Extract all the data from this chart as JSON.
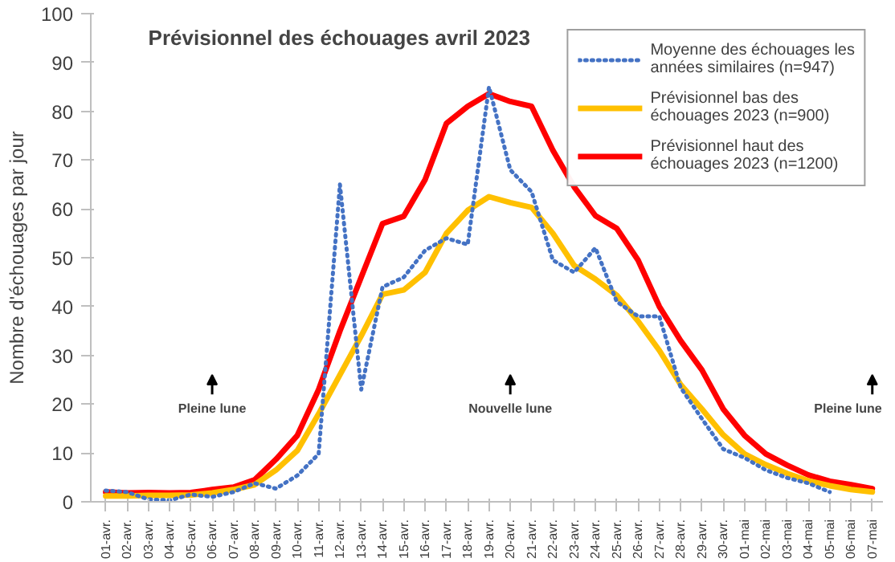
{
  "chart_data": {
    "type": "line",
    "title": "Prévisionnel des échouages avril 2023",
    "ylabel": "Nombre d'échouages par jour",
    "categories": [
      "01-avr.",
      "02-avr.",
      "03-avr.",
      "04-avr.",
      "05-avr.",
      "06-avr.",
      "07-avr.",
      "08-avr.",
      "09-avr.",
      "10-avr.",
      "11-avr.",
      "12-avr.",
      "13-avr.",
      "14-avr.",
      "15-avr.",
      "16-avr.",
      "17-avr.",
      "18-avr.",
      "19-avr.",
      "20-avr.",
      "21-avr.",
      "22-avr.",
      "23-avr.",
      "24-avr.",
      "25-avr.",
      "26-avr.",
      "27-avr.",
      "28-avr.",
      "29-avr.",
      "30-avr.",
      "01-mai",
      "02-mai",
      "03-mai",
      "04-mai",
      "05-mai",
      "06-mai",
      "07-mai"
    ],
    "series": [
      {
        "name": "Moyenne des échouages les années similaires (n=947)",
        "color": "#4472c4",
        "line_style": "dotted",
        "values": [
          2.3,
          2,
          0.5,
          0.3,
          1.5,
          1,
          2,
          3.8,
          2.7,
          5.4,
          9.8,
          65,
          23,
          44,
          46,
          51.5,
          54,
          52.7,
          85,
          68,
          63.5,
          49.5,
          47,
          52,
          41,
          38,
          38,
          23.4,
          17,
          10.8,
          9,
          6.5,
          4.9,
          3.8,
          2,
          null,
          null
        ]
      },
      {
        "name": "Prévisionnel bas des échouages 2023 (n=900)",
        "color": "#ffc000",
        "line_style": "solid",
        "values": [
          1.2,
          1.2,
          1.3,
          1.3,
          1.4,
          1.8,
          2.5,
          3.5,
          6.5,
          10.5,
          18,
          26,
          34,
          42.5,
          43.4,
          47,
          55,
          59.7,
          62.5,
          61.3,
          60.3,
          55,
          48.4,
          45.6,
          42.3,
          37,
          31,
          24,
          19,
          13.7,
          9.8,
          7.6,
          5.8,
          4.3,
          3.3,
          2.5,
          2
        ]
      },
      {
        "name": "Prévisionnel haut des échouages 2023 (n=1200)",
        "color": "#ff0000",
        "line_style": "solid",
        "values": [
          2,
          1.8,
          1.9,
          1.8,
          1.9,
          2.5,
          3,
          4.5,
          8.7,
          13.6,
          23,
          35,
          46,
          57,
          58.5,
          66,
          77.5,
          81,
          83.6,
          82,
          81,
          72,
          64.5,
          58.6,
          56,
          49.5,
          40,
          33,
          27,
          19,
          13.6,
          9.8,
          7.5,
          5.5,
          4.2,
          3.5,
          2.7
        ]
      }
    ],
    "ylim": [
      0,
      100
    ],
    "yticks": [
      0,
      10,
      20,
      30,
      40,
      50,
      60,
      70,
      80,
      90,
      100
    ],
    "grid": false,
    "legend": "top right",
    "annotations": [
      "Pleine lune",
      "Nouvelle lune",
      "Pleine lune"
    ]
  }
}
